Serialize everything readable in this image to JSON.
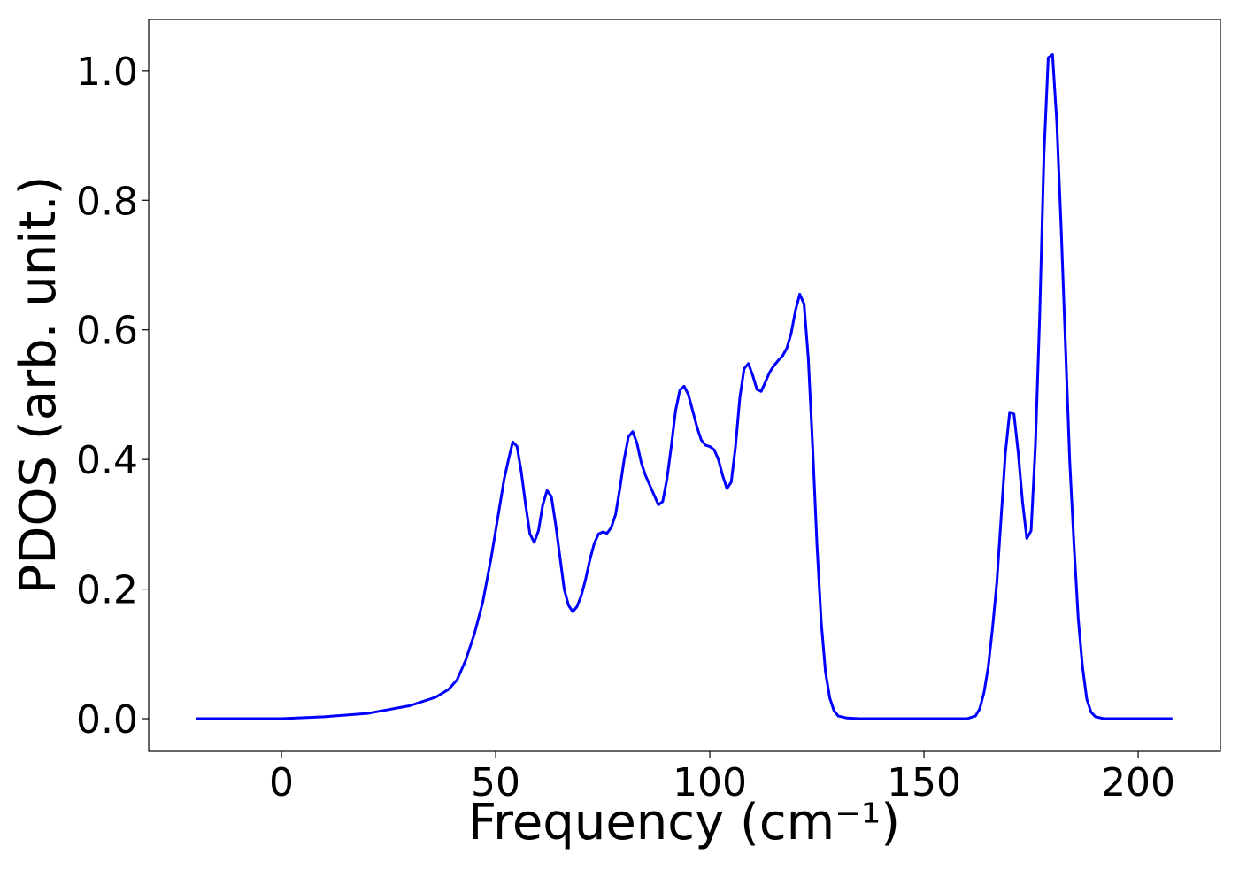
{
  "chart_data": {
    "type": "line",
    "xlabel": "Frequency (cm⁻¹)",
    "ylabel": "PDOS (arb. unit.)",
    "xlim": [
      -31,
      219.2
    ],
    "ylim": [
      -0.0505,
      1.079
    ],
    "xticks": [
      0,
      50,
      100,
      150,
      200
    ],
    "yticks": [
      {
        "value": 0,
        "label": "0.0"
      },
      0.2,
      0.4,
      0.6,
      0.8,
      {
        "value": 1,
        "label": "1.0"
      }
    ],
    "series": [
      {
        "color": "#0000ff",
        "x": [
          -20,
          0,
          10,
          20,
          30,
          36,
          39,
          41,
          43,
          45,
          47,
          49,
          51,
          52,
          53,
          54,
          55,
          56,
          57,
          58,
          59,
          60,
          61,
          62,
          63,
          64,
          65,
          66,
          67,
          68,
          69,
          70,
          71,
          72,
          73,
          74,
          75,
          76,
          77,
          78,
          79,
          80,
          81,
          82,
          83,
          84,
          85,
          86,
          87,
          88,
          89,
          90,
          91,
          92,
          93,
          94,
          95,
          96,
          97,
          98,
          99,
          100,
          101,
          102,
          103,
          104,
          105,
          106,
          107,
          108,
          109,
          110,
          111,
          112,
          113,
          114,
          115,
          116,
          117,
          118,
          119,
          120,
          121,
          122,
          123,
          124,
          125,
          126,
          127,
          128,
          129,
          130,
          132,
          135,
          160,
          162,
          163,
          164,
          165,
          166,
          167,
          168,
          169,
          170,
          171,
          172,
          173,
          174,
          175,
          176,
          177,
          178,
          179,
          180,
          181,
          182,
          183,
          184,
          185,
          186,
          187,
          188,
          189,
          190,
          192,
          208
        ],
        "values": [
          0,
          0,
          0.003,
          0.008,
          0.02,
          0.033,
          0.045,
          0.06,
          0.09,
          0.13,
          0.18,
          0.25,
          0.33,
          0.37,
          0.4,
          0.427,
          0.42,
          0.38,
          0.33,
          0.285,
          0.272,
          0.29,
          0.33,
          0.352,
          0.343,
          0.3,
          0.25,
          0.2,
          0.175,
          0.165,
          0.173,
          0.19,
          0.215,
          0.245,
          0.27,
          0.285,
          0.288,
          0.286,
          0.295,
          0.315,
          0.355,
          0.4,
          0.435,
          0.443,
          0.425,
          0.395,
          0.375,
          0.36,
          0.345,
          0.33,
          0.335,
          0.37,
          0.42,
          0.475,
          0.507,
          0.513,
          0.5,
          0.475,
          0.45,
          0.43,
          0.422,
          0.42,
          0.415,
          0.4,
          0.375,
          0.355,
          0.365,
          0.42,
          0.495,
          0.54,
          0.548,
          0.53,
          0.508,
          0.505,
          0.52,
          0.535,
          0.545,
          0.553,
          0.56,
          0.572,
          0.595,
          0.63,
          0.655,
          0.64,
          0.555,
          0.42,
          0.27,
          0.15,
          0.072,
          0.032,
          0.012,
          0.004,
          0.001,
          0,
          0,
          0.004,
          0.015,
          0.04,
          0.08,
          0.14,
          0.21,
          0.31,
          0.41,
          0.473,
          0.47,
          0.41,
          0.335,
          0.278,
          0.29,
          0.42,
          0.62,
          0.87,
          1.02,
          1.025,
          0.92,
          0.76,
          0.58,
          0.4,
          0.27,
          0.155,
          0.08,
          0.03,
          0.01,
          0.003,
          0,
          0
        ]
      }
    ]
  }
}
